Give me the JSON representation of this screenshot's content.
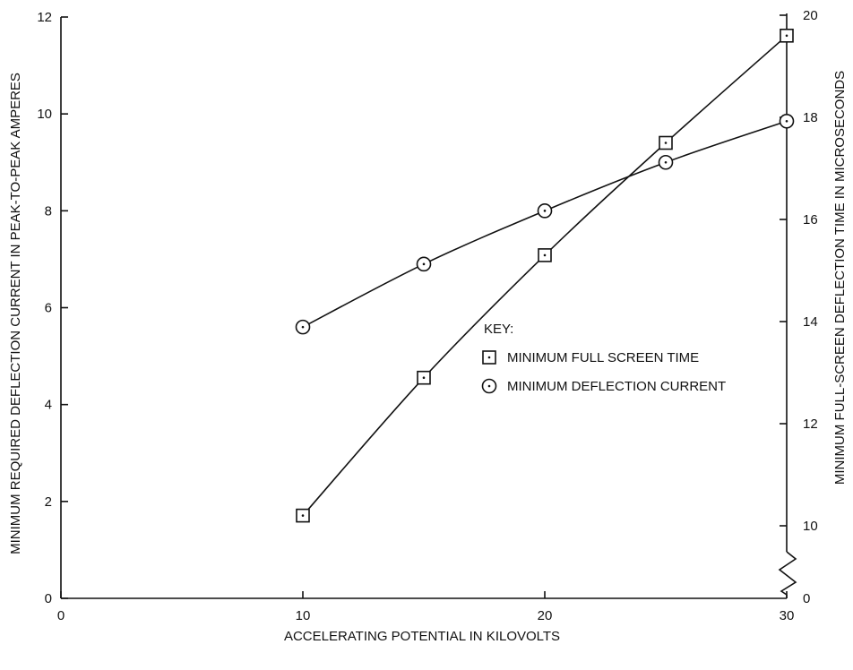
{
  "chart_data": {
    "type": "line",
    "title": "",
    "xlabel": "ACCELERATING POTENTIAL IN KILOVOLTS",
    "ylabel": "MINIMUM REQUIRED DEFLECTION CURRENT IN PEAK-TO-PEAK AMPERES",
    "y2label": "MINIMUM FULL-SCREEN DEFLECTION TIME IN MICROSECONDS",
    "xlim": [
      0,
      30
    ],
    "ylim": [
      0,
      12
    ],
    "y2_ticks": [
      0,
      10,
      12,
      14,
      16,
      18,
      20
    ],
    "y2_axis_break": true,
    "x_ticks": [
      0,
      10,
      20,
      30
    ],
    "y_ticks": [
      0,
      2,
      4,
      6,
      8,
      10,
      12
    ],
    "grid": false,
    "legend": {
      "title": "KEY:",
      "position": "center-right",
      "entries": [
        {
          "marker": "square",
          "label": "MINIMUM FULL SCREEN TIME"
        },
        {
          "marker": "circle",
          "label": "MINIMUM DEFLECTION CURRENT"
        }
      ]
    },
    "series": [
      {
        "name": "MINIMUM FULL SCREEN TIME",
        "axis": "right",
        "marker": "square",
        "x": [
          10,
          15,
          20,
          25,
          30
        ],
        "values": [
          10.2,
          12.9,
          15.3,
          17.5,
          19.6
        ]
      },
      {
        "name": "MINIMUM DEFLECTION CURRENT",
        "axis": "left",
        "marker": "circle",
        "x": [
          10,
          15,
          20,
          25,
          30
        ],
        "values": [
          5.6,
          6.9,
          8.0,
          9.0,
          9.85
        ]
      }
    ]
  }
}
